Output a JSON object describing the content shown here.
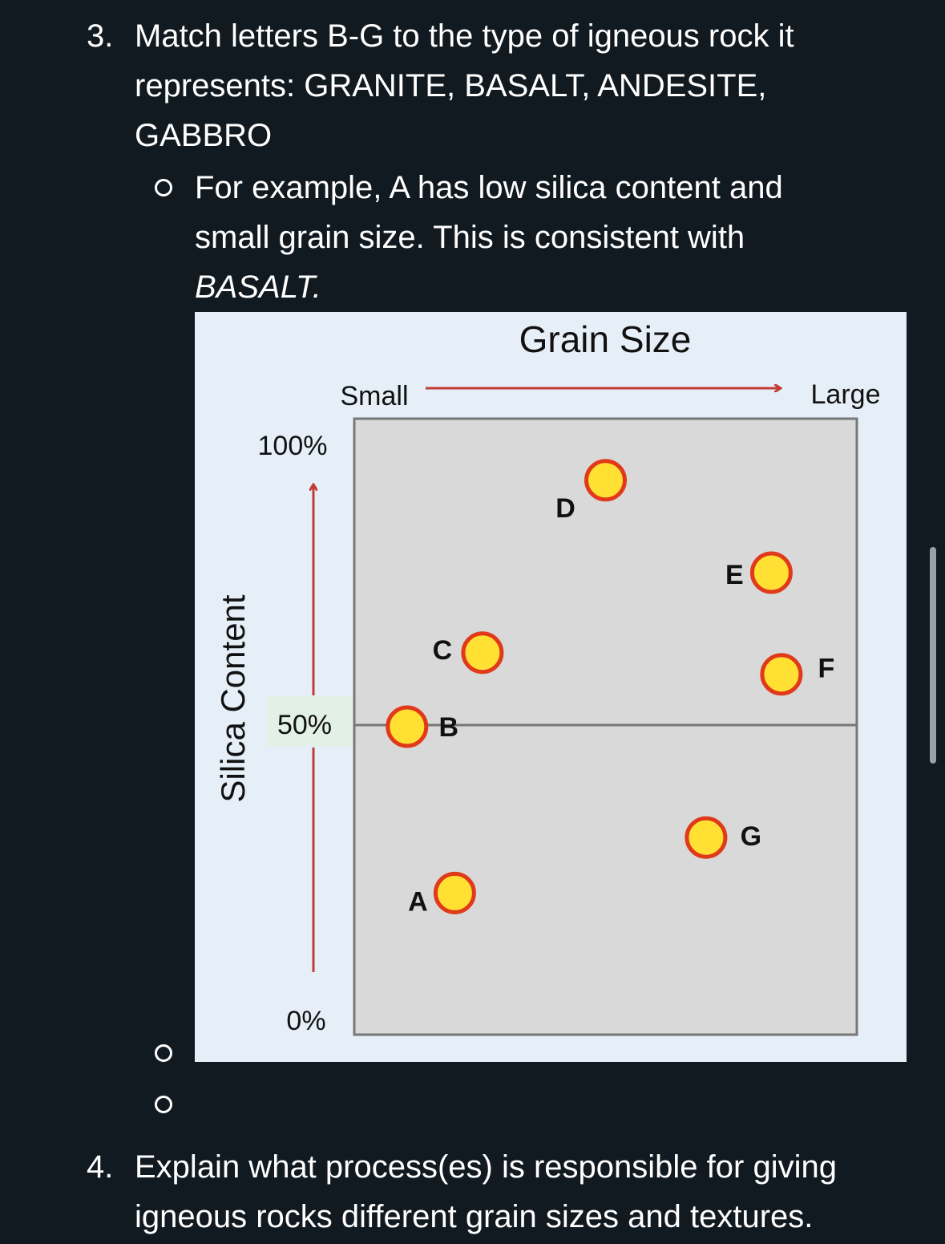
{
  "question3": {
    "number": "3.",
    "lines": [
      "Match letters B-G to the type of igneous rock it",
      "represents: GRANITE, BASALT, ANDESITE,",
      "GABBRO"
    ],
    "example_lines": [
      "For example, A has low silica content and",
      "small grain size.  This is consistent with"
    ],
    "example_answer": "BASALT."
  },
  "question4": {
    "number": "4.",
    "lines": [
      "Explain what process(es) is responsible for giving",
      "igneous rocks different grain sizes and textures."
    ]
  },
  "colors": {
    "background": "#121a21",
    "figure_bg": "#e6eff8",
    "plot_bg": "#d9d9d9",
    "arrow": "#c23b35",
    "point_fill": "#ffe033",
    "point_stroke": "#e03a1a"
  },
  "chart_data": {
    "type": "scatter",
    "title": "Grain Size",
    "x_axis": {
      "left_label": "Small",
      "right_label": "Large",
      "range": [
        0,
        100
      ]
    },
    "y_axis": {
      "label": "Silica Content",
      "ticks": [
        "100%",
        "50%",
        "0%"
      ],
      "range": [
        0,
        100
      ]
    },
    "reference_line_y": 50,
    "grid": false,
    "points": [
      {
        "label": "A",
        "x": 20,
        "y": 23
      },
      {
        "label": "B",
        "x": 10.5,
        "y": 50
      },
      {
        "label": "C",
        "x": 25.5,
        "y": 62
      },
      {
        "label": "D",
        "x": 50,
        "y": 90
      },
      {
        "label": "E",
        "x": 83,
        "y": 75
      },
      {
        "label": "F",
        "x": 85,
        "y": 58.5
      },
      {
        "label": "G",
        "x": 70,
        "y": 32
      }
    ]
  }
}
